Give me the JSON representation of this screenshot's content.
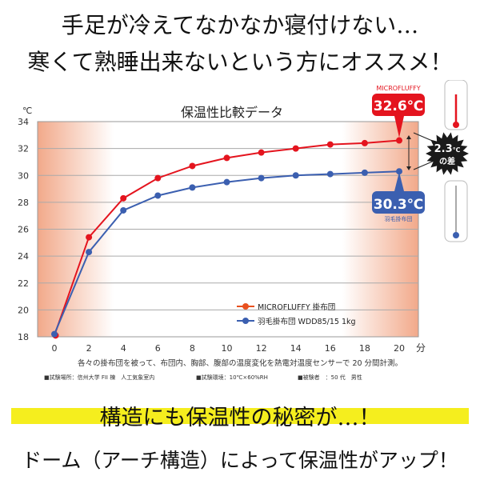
{
  "header": {
    "line1": "手足が冷えてなかなか寝付けない…",
    "line2": "寒くて熟睡出来ないという方にオススメ！"
  },
  "footer": {
    "line1": "構造にも保温性の秘密が…！",
    "line2": "ドーム（アーチ構造）によって保温性がアップ！"
  },
  "chart_data": {
    "type": "line",
    "title": "保温性比較データ",
    "ylabel": "℃",
    "xlabel": "分",
    "x": [
      0,
      2,
      4,
      6,
      8,
      10,
      12,
      14,
      16,
      18,
      20
    ],
    "xlim": [
      0,
      20
    ],
    "ylim": [
      18,
      34
    ],
    "yticks": [
      18,
      20,
      22,
      24,
      26,
      28,
      30,
      32,
      34
    ],
    "grid": true,
    "legend": "lower-right",
    "series": [
      {
        "name": "MICROFLUFFY 掛布団",
        "color": "#e4141e",
        "values": [
          18.1,
          25.4,
          28.3,
          29.8,
          30.7,
          31.3,
          31.7,
          32.0,
          32.3,
          32.4,
          32.6
        ]
      },
      {
        "name": "羽毛掛布団 WDD85/15 1kg",
        "color": "#3b5fb0",
        "values": [
          18.2,
          24.3,
          27.4,
          28.5,
          29.1,
          29.5,
          29.8,
          30.0,
          30.1,
          30.2,
          30.3
        ]
      }
    ],
    "annotations": {
      "red_label": "MICROFLUFFY",
      "red_value": "32.6℃",
      "blue_value": "30.3℃",
      "blue_label": "羽毛掛布団",
      "diff_value": "2.3",
      "diff_unit": "℃",
      "diff_suffix": "の差"
    },
    "caption": "各々の掛布団を被って、布団内、胸部、腹部の温度変化を熱電対温度センサーで 20 分間計測。",
    "notes": [
      "■試験場所：信州大学 FII 棟　人工気象室内",
      "■試験環境：10℃×60%RH",
      "■被験者　：50 代　男性"
    ]
  }
}
